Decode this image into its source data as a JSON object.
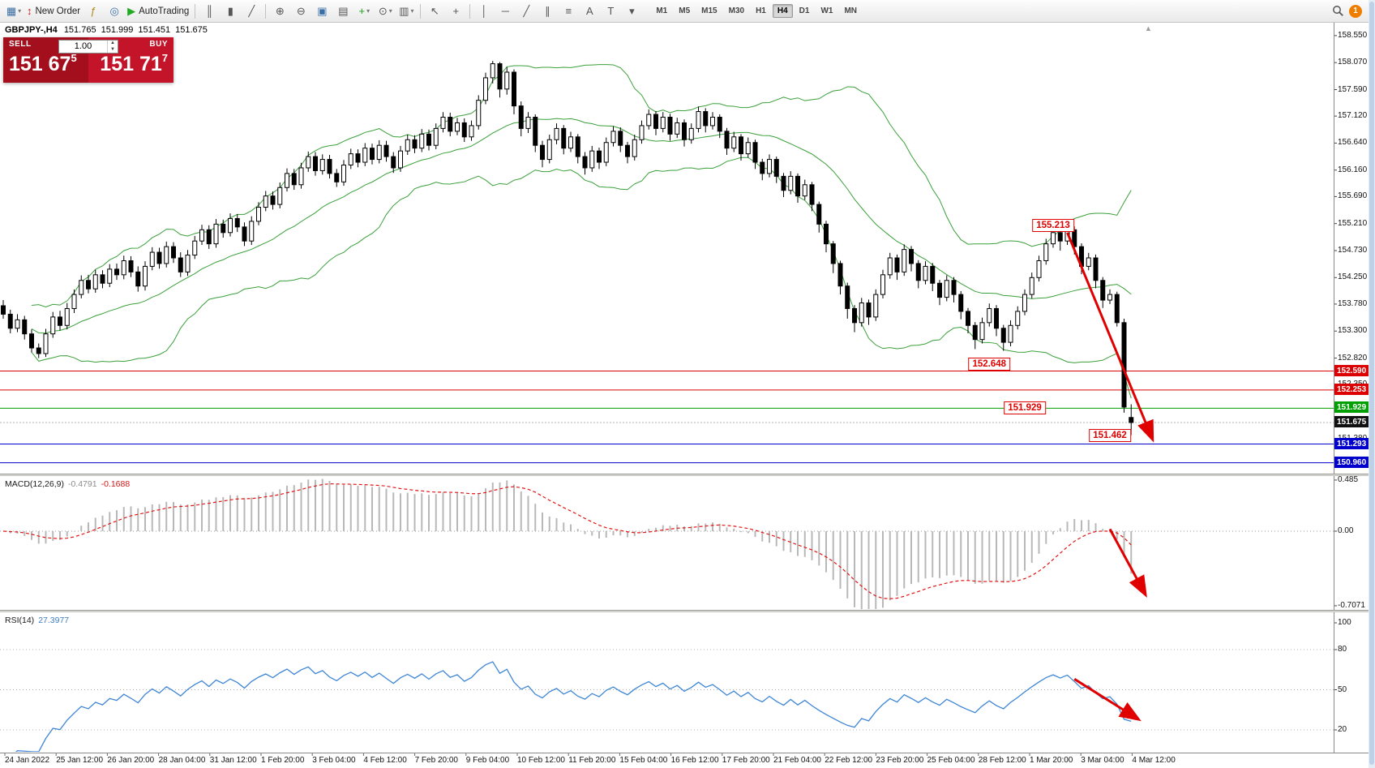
{
  "toolbar": {
    "badge_count": "1",
    "items": [
      {
        "name": "new-chart-button",
        "glyph": "▦",
        "color": "#3a6ea5",
        "caret": true
      },
      {
        "name": "new-order-button",
        "glyph": "↕",
        "color": "#cc2222",
        "label": "New Order"
      },
      {
        "name": "expert-advisors-button",
        "glyph": "ƒ",
        "color": "#b08818"
      },
      {
        "name": "market-watch-button",
        "glyph": "◎",
        "color": "#3a6ea5"
      },
      {
        "name": "autotrading-button",
        "glyph": "▶",
        "color": "#22aa22",
        "label": "AutoTrading"
      },
      {
        "sep": true
      },
      {
        "name": "bar-chart-button",
        "glyph": "║"
      },
      {
        "name": "candlestick-chart-button",
        "glyph": "▮"
      },
      {
        "name": "line-chart-button",
        "glyph": "╱"
      },
      {
        "sep": true
      },
      {
        "name": "zoom-in-button",
        "glyph": "⊕"
      },
      {
        "name": "zoom-out-button",
        "glyph": "⊖"
      },
      {
        "name": "tile-windows-button",
        "glyph": "▣",
        "color": "#3a6ea5"
      },
      {
        "name": "auto-arrange-button",
        "glyph": "▤"
      },
      {
        "name": "indicators-button",
        "glyph": "+",
        "color": "#18a018",
        "caret": true
      },
      {
        "name": "periods-button",
        "glyph": "⊙",
        "caret": true
      },
      {
        "name": "templates-button",
        "glyph": "▥",
        "caret": true
      },
      {
        "sep": true
      },
      {
        "name": "cursor-button",
        "glyph": "↖"
      },
      {
        "name": "crosshair-button",
        "glyph": "+"
      },
      {
        "sep": true
      },
      {
        "name": "vertical-line-button",
        "glyph": "│"
      },
      {
        "name": "horizontal-line-button",
        "glyph": "─"
      },
      {
        "name": "trendline-button",
        "glyph": "╱"
      },
      {
        "name": "channel-button",
        "glyph": "∥"
      },
      {
        "name": "fibonacci-button",
        "glyph": "≡"
      },
      {
        "name": "text-button",
        "glyph": "A"
      },
      {
        "name": "text-label-button",
        "glyph": "T"
      },
      {
        "name": "shapes-button",
        "glyph": "▾"
      }
    ],
    "timeframes": [
      {
        "label": "M1"
      },
      {
        "label": "M5"
      },
      {
        "label": "M15"
      },
      {
        "label": "M30"
      },
      {
        "label": "H1"
      },
      {
        "label": "H4",
        "active": true
      },
      {
        "label": "D1"
      },
      {
        "label": "W1"
      },
      {
        "label": "MN"
      }
    ]
  },
  "symbol_bar": {
    "symbol": "GBPJPY-,H4",
    "open": "151.765",
    "high": "151.999",
    "low": "151.451",
    "close": "151.675"
  },
  "trade_panel": {
    "sell_label": "SELL",
    "buy_label": "BUY",
    "volume": "1.00",
    "spin_up": "▲",
    "spin_down": "▼",
    "sell_price_main": "151 67",
    "sell_price_sup": "5",
    "buy_price_main": "151 71",
    "buy_price_sup": "7"
  },
  "chart_data": {
    "type": "candlestick",
    "symbol": "GBPJPY-",
    "timeframe": "H4",
    "candles": [
      [
        153.75,
        153.85,
        153.52,
        153.6
      ],
      [
        153.6,
        153.68,
        153.26,
        153.35
      ],
      [
        153.35,
        153.6,
        153.28,
        153.5
      ],
      [
        153.5,
        153.57,
        153.15,
        153.25
      ],
      [
        153.25,
        153.33,
        152.92,
        153.0
      ],
      [
        153.0,
        153.08,
        152.82,
        152.9
      ],
      [
        152.9,
        153.34,
        152.84,
        153.25
      ],
      [
        153.25,
        153.64,
        153.18,
        153.55
      ],
      [
        153.55,
        153.66,
        153.31,
        153.4
      ],
      [
        153.4,
        153.8,
        153.33,
        153.7
      ],
      [
        153.7,
        154.04,
        153.62,
        153.95
      ],
      [
        153.95,
        154.29,
        153.88,
        154.2
      ],
      [
        154.2,
        154.3,
        153.97,
        154.05
      ],
      [
        154.05,
        154.39,
        153.98,
        154.3
      ],
      [
        154.3,
        154.38,
        154.06,
        154.15
      ],
      [
        154.15,
        154.49,
        154.08,
        154.4
      ],
      [
        154.4,
        154.5,
        154.21,
        154.3
      ],
      [
        154.3,
        154.64,
        154.22,
        154.55
      ],
      [
        154.55,
        154.63,
        154.26,
        154.35
      ],
      [
        154.35,
        154.45,
        154.0,
        154.1
      ],
      [
        154.1,
        154.54,
        154.02,
        154.45
      ],
      [
        154.45,
        154.79,
        154.38,
        154.7
      ],
      [
        154.7,
        154.78,
        154.41,
        154.5
      ],
      [
        154.5,
        154.89,
        154.43,
        154.8
      ],
      [
        154.8,
        154.88,
        154.51,
        154.6
      ],
      [
        154.6,
        154.7,
        154.26,
        154.35
      ],
      [
        154.35,
        154.74,
        154.28,
        154.65
      ],
      [
        154.65,
        154.99,
        154.58,
        154.9
      ],
      [
        154.9,
        155.19,
        154.83,
        155.1
      ],
      [
        155.1,
        155.18,
        154.76,
        154.85
      ],
      [
        154.85,
        155.29,
        154.78,
        155.2
      ],
      [
        155.2,
        155.28,
        154.96,
        155.05
      ],
      [
        155.05,
        155.39,
        154.98,
        155.3
      ],
      [
        155.3,
        155.38,
        155.06,
        155.15
      ],
      [
        155.15,
        155.23,
        154.81,
        154.9
      ],
      [
        154.9,
        155.34,
        154.83,
        155.25
      ],
      [
        155.25,
        155.59,
        155.18,
        155.5
      ],
      [
        155.5,
        155.79,
        155.43,
        155.7
      ],
      [
        155.7,
        155.78,
        155.46,
        155.55
      ],
      [
        155.55,
        155.94,
        155.48,
        155.85
      ],
      [
        155.85,
        156.19,
        155.78,
        156.1
      ],
      [
        156.1,
        156.18,
        155.81,
        155.9
      ],
      [
        155.9,
        156.29,
        155.83,
        156.2
      ],
      [
        156.2,
        156.49,
        156.13,
        156.4
      ],
      [
        156.4,
        156.48,
        156.06,
        156.15
      ],
      [
        156.15,
        156.44,
        156.08,
        156.35
      ],
      [
        156.35,
        156.43,
        156.01,
        156.1
      ],
      [
        156.1,
        156.18,
        155.86,
        155.95
      ],
      [
        155.95,
        156.34,
        155.88,
        156.25
      ],
      [
        156.25,
        156.54,
        156.18,
        156.45
      ],
      [
        156.45,
        156.53,
        156.21,
        156.3
      ],
      [
        156.3,
        156.64,
        156.23,
        156.55
      ],
      [
        156.55,
        156.63,
        156.26,
        156.35
      ],
      [
        156.35,
        156.69,
        156.28,
        156.6
      ],
      [
        156.6,
        156.68,
        156.31,
        156.4
      ],
      [
        156.4,
        156.48,
        156.11,
        156.2
      ],
      [
        156.2,
        156.59,
        156.13,
        156.5
      ],
      [
        156.5,
        156.79,
        156.43,
        156.7
      ],
      [
        156.7,
        156.78,
        156.46,
        156.55
      ],
      [
        156.55,
        156.89,
        156.48,
        156.8
      ],
      [
        156.8,
        156.88,
        156.51,
        156.6
      ],
      [
        156.6,
        156.99,
        156.53,
        156.9
      ],
      [
        156.9,
        157.19,
        156.83,
        157.1
      ],
      [
        157.1,
        157.18,
        156.76,
        156.85
      ],
      [
        156.85,
        157.09,
        156.78,
        157.0
      ],
      [
        157.0,
        157.08,
        156.66,
        156.75
      ],
      [
        156.75,
        157.04,
        156.68,
        156.95
      ],
      [
        156.95,
        157.49,
        156.88,
        157.4
      ],
      [
        157.4,
        157.89,
        157.33,
        157.8
      ],
      [
        157.8,
        158.1,
        157.7,
        158.05
      ],
      [
        158.05,
        158.08,
        157.45,
        157.6
      ],
      [
        157.6,
        157.99,
        157.5,
        157.9
      ],
      [
        157.9,
        157.95,
        157.15,
        157.3
      ],
      [
        157.3,
        157.38,
        156.76,
        156.9
      ],
      [
        156.9,
        157.19,
        156.82,
        157.1
      ],
      [
        157.1,
        157.15,
        156.48,
        156.6
      ],
      [
        156.6,
        156.68,
        156.21,
        156.35
      ],
      [
        156.35,
        156.79,
        156.28,
        156.7
      ],
      [
        156.7,
        156.99,
        156.62,
        156.9
      ],
      [
        156.9,
        156.96,
        156.44,
        156.55
      ],
      [
        156.55,
        156.84,
        156.48,
        156.75
      ],
      [
        156.75,
        156.8,
        156.28,
        156.4
      ],
      [
        156.4,
        156.48,
        156.08,
        156.2
      ],
      [
        156.2,
        156.59,
        156.13,
        156.5
      ],
      [
        156.5,
        156.56,
        156.18,
        156.3
      ],
      [
        156.3,
        156.74,
        156.23,
        156.65
      ],
      [
        156.65,
        156.94,
        156.58,
        156.85
      ],
      [
        156.85,
        156.92,
        156.48,
        156.6
      ],
      [
        156.6,
        156.66,
        156.28,
        156.4
      ],
      [
        156.4,
        156.79,
        156.33,
        156.7
      ],
      [
        156.7,
        157.04,
        156.63,
        156.95
      ],
      [
        156.95,
        157.24,
        156.88,
        157.15
      ],
      [
        157.15,
        157.21,
        156.78,
        156.9
      ],
      [
        156.9,
        157.19,
        156.83,
        157.1
      ],
      [
        157.1,
        157.16,
        156.68,
        156.8
      ],
      [
        156.8,
        157.09,
        156.73,
        157.0
      ],
      [
        157.0,
        157.06,
        156.58,
        156.7
      ],
      [
        156.7,
        156.99,
        156.63,
        156.9
      ],
      [
        156.9,
        157.29,
        156.83,
        157.2
      ],
      [
        157.2,
        157.26,
        156.83,
        156.95
      ],
      [
        156.95,
        157.19,
        156.88,
        157.1
      ],
      [
        157.1,
        157.15,
        156.73,
        156.85
      ],
      [
        156.85,
        156.91,
        156.43,
        156.55
      ],
      [
        156.55,
        156.84,
        156.48,
        156.75
      ],
      [
        156.75,
        156.8,
        156.33,
        156.45
      ],
      [
        156.45,
        156.74,
        156.38,
        156.65
      ],
      [
        156.65,
        156.7,
        156.18,
        156.3
      ],
      [
        156.3,
        156.36,
        155.98,
        156.1
      ],
      [
        156.1,
        156.44,
        156.03,
        156.35
      ],
      [
        156.35,
        156.4,
        155.93,
        156.05
      ],
      [
        156.05,
        156.11,
        155.68,
        155.8
      ],
      [
        155.8,
        156.14,
        155.73,
        156.05
      ],
      [
        156.05,
        156.1,
        155.58,
        155.7
      ],
      [
        155.7,
        155.99,
        155.63,
        155.9
      ],
      [
        155.9,
        155.95,
        155.43,
        155.55
      ],
      [
        155.55,
        155.6,
        155.05,
        155.2
      ],
      [
        155.2,
        155.26,
        154.7,
        154.85
      ],
      [
        154.85,
        154.9,
        154.33,
        154.5
      ],
      [
        154.5,
        154.55,
        153.95,
        154.1
      ],
      [
        154.1,
        154.16,
        153.52,
        153.7
      ],
      [
        153.7,
        153.76,
        153.28,
        153.45
      ],
      [
        153.45,
        153.89,
        153.38,
        153.8
      ],
      [
        153.8,
        153.86,
        153.41,
        153.55
      ],
      [
        153.55,
        154.04,
        153.48,
        153.95
      ],
      [
        153.95,
        154.39,
        153.88,
        154.3
      ],
      [
        154.3,
        154.69,
        154.23,
        154.6
      ],
      [
        154.6,
        154.66,
        154.21,
        154.35
      ],
      [
        154.35,
        154.84,
        154.28,
        154.75
      ],
      [
        154.75,
        154.81,
        154.36,
        154.5
      ],
      [
        154.5,
        154.56,
        154.06,
        154.2
      ],
      [
        154.2,
        154.54,
        154.13,
        154.45
      ],
      [
        154.45,
        154.51,
        154.01,
        154.15
      ],
      [
        154.15,
        154.21,
        153.76,
        153.9
      ],
      [
        153.9,
        154.29,
        153.83,
        154.2
      ],
      [
        154.2,
        154.26,
        153.81,
        153.95
      ],
      [
        153.95,
        154.01,
        153.51,
        153.65
      ],
      [
        153.65,
        153.71,
        153.26,
        153.4
      ],
      [
        153.4,
        153.46,
        152.98,
        153.15
      ],
      [
        153.15,
        153.54,
        153.08,
        153.45
      ],
      [
        153.45,
        153.79,
        153.38,
        153.7
      ],
      [
        153.7,
        153.76,
        153.21,
        153.35
      ],
      [
        153.35,
        153.41,
        152.95,
        153.1
      ],
      [
        153.1,
        153.49,
        153.03,
        153.4
      ],
      [
        153.4,
        153.74,
        153.33,
        153.65
      ],
      [
        153.65,
        154.04,
        153.58,
        153.95
      ],
      [
        153.95,
        154.34,
        153.88,
        154.25
      ],
      [
        154.25,
        154.64,
        154.18,
        154.55
      ],
      [
        154.55,
        154.94,
        154.48,
        154.85
      ],
      [
        154.85,
        155.14,
        154.78,
        155.05
      ],
      [
        155.05,
        155.11,
        154.73,
        154.9
      ],
      [
        154.9,
        155.213,
        154.83,
        155.1
      ],
      [
        155.1,
        155.16,
        154.66,
        154.8
      ],
      [
        154.8,
        154.86,
        154.31,
        154.45
      ],
      [
        154.45,
        154.69,
        154.38,
        154.6
      ],
      [
        154.6,
        154.66,
        154.06,
        154.2
      ],
      [
        154.2,
        154.26,
        153.71,
        153.85
      ],
      [
        153.85,
        154.04,
        153.78,
        153.95
      ],
      [
        153.95,
        154.0,
        153.38,
        153.45
      ],
      [
        153.45,
        153.52,
        151.85,
        151.95
      ],
      [
        151.765,
        151.999,
        151.451,
        151.675
      ]
    ],
    "price_ticks": [
      "158.550",
      "158.070",
      "157.590",
      "157.120",
      "156.640",
      "156.160",
      "155.690",
      "155.210",
      "154.730",
      "154.250",
      "153.780",
      "153.300",
      "152.820",
      "152.350",
      "151.880",
      "151.380",
      "150.900"
    ],
    "price_tags": [
      {
        "value": "152.590",
        "color": "#dd0000"
      },
      {
        "value": "152.253",
        "color": "#dd0000"
      },
      {
        "value": "151.929",
        "color": "#00a000"
      },
      {
        "value": "151.675",
        "color": "#111111"
      },
      {
        "value": "151.293",
        "color": "#0000cc"
      },
      {
        "value": "150.960",
        "color": "#0000cc"
      }
    ],
    "hlines": [
      {
        "price": 152.59,
        "color": "#dd0000"
      },
      {
        "price": 152.253,
        "color": "#dd0000"
      },
      {
        "price": 151.929,
        "color": "#00a000"
      },
      {
        "price": 151.675,
        "color": "#b0b0b0",
        "style": "dotted"
      },
      {
        "price": 151.293,
        "color": "#0000cc"
      },
      {
        "price": 150.96,
        "color": "#0000cc"
      }
    ],
    "time_labels": [
      "24 Jan 2022",
      "25 Jan 12:00",
      "26 Jan 20:00",
      "28 Jan 04:00",
      "31 Jan 12:00",
      "1 Feb 20:00",
      "3 Feb 04:00",
      "4 Feb 12:00",
      "7 Feb 20:00",
      "9 Feb 04:00",
      "10 Feb 12:00",
      "11 Feb 20:00",
      "15 Feb 04:00",
      "16 Feb 12:00",
      "17 Feb 20:00",
      "21 Feb 04:00",
      "22 Feb 12:00",
      "23 Feb 20:00",
      "25 Feb 04:00",
      "28 Feb 12:00",
      "1 Mar 20:00",
      "3 Mar 04:00",
      "4 Mar 12:00"
    ],
    "overlays": {
      "bollinger": {
        "period": 20,
        "deviations": 2,
        "color": "#3aa03a"
      }
    },
    "macd": {
      "name": "MACD(12,26,9)",
      "value_main": "-0.4791",
      "value_signal": "-0.1688",
      "params": [
        12,
        26,
        9
      ],
      "axis": [
        "0.485",
        "0.00",
        "-0.7071"
      ],
      "histogram_color": "#b8b8b8",
      "signal_color": "#e21515"
    },
    "rsi": {
      "name": "RSI(14)",
      "value": "27.3977",
      "period": 14,
      "axis": [
        "100",
        "80",
        "50",
        "20"
      ],
      "levels": [
        80,
        50,
        20
      ],
      "color": "#3e86d6"
    },
    "annotations": {
      "color": "#e00000",
      "labels": [
        {
          "text": "155.213",
          "index": 148,
          "price": 155.17
        },
        {
          "text": "152.648",
          "index": 139,
          "price": 152.71
        },
        {
          "text": "151.929",
          "index": 144,
          "price": 151.93
        },
        {
          "text": "151.462",
          "index": 156,
          "price": 151.45
        }
      ],
      "arrows": [
        {
          "panel": "main",
          "from_index": 150,
          "from_value": 155.05,
          "to_index": 162,
          "to_value": 151.38
        },
        {
          "panel": "macd",
          "from_index": 156,
          "from_value": 0.02,
          "to_index": 161,
          "to_value": -0.6
        },
        {
          "panel": "rsi",
          "from_index": 151,
          "from_value": 58,
          "to_index": 160,
          "to_value": 28
        }
      ]
    }
  }
}
